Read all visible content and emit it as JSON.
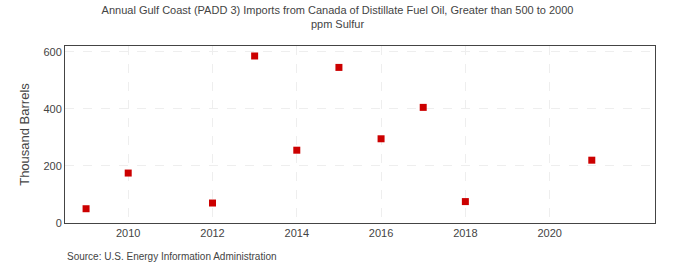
{
  "chart_data": {
    "type": "scatter",
    "title": "Annual Gulf Coast (PADD 3) Imports from Canada of Distillate Fuel Oil, Greater than 500 to 2000\nppm Sulfur",
    "ylabel": "Thousand Barrels",
    "annotations": [
      "Source: U.S. Energy Information Administration"
    ],
    "x": [
      2009,
      2010,
      2012,
      2013,
      2014,
      2015,
      2016,
      2017,
      2018,
      2021
    ],
    "values": [
      50,
      175,
      70,
      585,
      255,
      545,
      295,
      405,
      75,
      220
    ],
    "color": "#cc0000",
    "marker": "square",
    "xlim": [
      2008.5,
      2022.5
    ],
    "xticks": [
      2010,
      2012,
      2014,
      2016,
      2018,
      2020
    ],
    "ylim": [
      0,
      620
    ],
    "yticks": [
      0,
      200,
      400,
      600
    ],
    "grid": true
  }
}
